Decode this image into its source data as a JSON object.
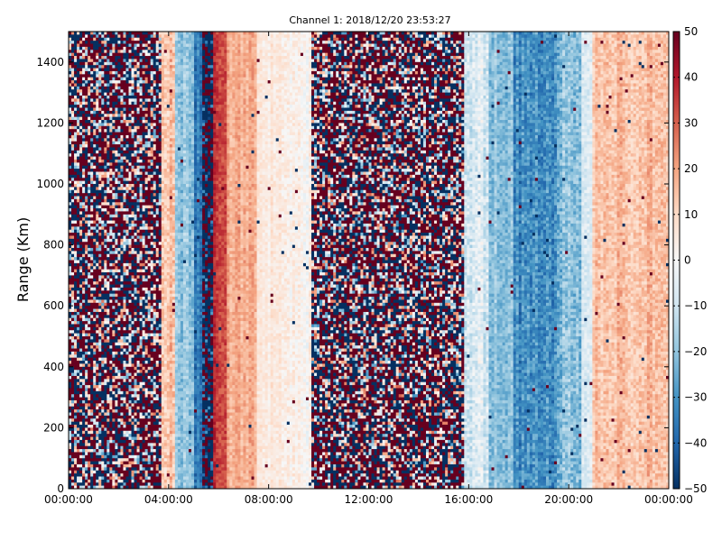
{
  "chart_data": {
    "type": "heatmap",
    "title": "Channel 1: 2018/12/20 23:53:27",
    "xlabel": "",
    "ylabel": "Range (Km)",
    "x_ticks": [
      "00:00:00",
      "04:00:00",
      "08:00:00",
      "12:00:00",
      "16:00:00",
      "20:00:00",
      "00:00:00"
    ],
    "x_range_hours": [
      0,
      24
    ],
    "y_ticks": [
      0,
      200,
      400,
      600,
      800,
      1000,
      1200,
      1400
    ],
    "ylim": [
      0,
      1500
    ],
    "colorbar": {
      "colormap": "RdBu_r",
      "vmin": -50,
      "vmax": 50,
      "ticks": [
        50,
        40,
        30,
        20,
        10,
        0,
        -10,
        -20,
        -30,
        -40,
        -50
      ],
      "colors": {
        "low": "#053061",
        "mid": "#f7f7f7",
        "high": "#67001f"
      }
    },
    "grid": false,
    "legend": "none",
    "bands": [
      {
        "start_hour": 0.0,
        "end_hour": 3.7,
        "mean": 0,
        "spread": 55,
        "noise": true
      },
      {
        "start_hour": 3.7,
        "end_hour": 4.3,
        "mean": 15,
        "spread": 15,
        "noise": false
      },
      {
        "start_hour": 4.3,
        "end_hour": 5.0,
        "mean": -20,
        "spread": 12,
        "noise": false
      },
      {
        "start_hour": 5.0,
        "end_hour": 5.4,
        "mean": -35,
        "spread": 12,
        "noise": false
      },
      {
        "start_hour": 5.4,
        "end_hour": 5.8,
        "mean": -45,
        "spread": 35,
        "noise": true
      },
      {
        "start_hour": 5.8,
        "end_hour": 6.3,
        "mean": 35,
        "spread": 10,
        "noise": false
      },
      {
        "start_hour": 6.3,
        "end_hour": 7.5,
        "mean": 18,
        "spread": 10,
        "noise": false
      },
      {
        "start_hour": 7.5,
        "end_hour": 8.5,
        "mean": 5,
        "spread": 8,
        "noise": false
      },
      {
        "start_hour": 8.5,
        "end_hour": 9.7,
        "mean": 2,
        "spread": 10,
        "noise": false
      },
      {
        "start_hour": 9.7,
        "end_hour": 15.8,
        "mean": 0,
        "spread": 60,
        "noise": true
      },
      {
        "start_hour": 15.8,
        "end_hour": 16.8,
        "mean": -8,
        "spread": 15,
        "noise": false
      },
      {
        "start_hour": 16.8,
        "end_hour": 17.8,
        "mean": -20,
        "spread": 12,
        "noise": false
      },
      {
        "start_hour": 17.8,
        "end_hour": 19.5,
        "mean": -32,
        "spread": 15,
        "noise": false
      },
      {
        "start_hour": 19.5,
        "end_hour": 20.5,
        "mean": -22,
        "spread": 15,
        "noise": false
      },
      {
        "start_hour": 20.5,
        "end_hour": 21.0,
        "mean": -8,
        "spread": 10,
        "noise": false
      },
      {
        "start_hour": 21.0,
        "end_hour": 24.0,
        "mean": 15,
        "spread": 12,
        "noise": false
      }
    ]
  }
}
